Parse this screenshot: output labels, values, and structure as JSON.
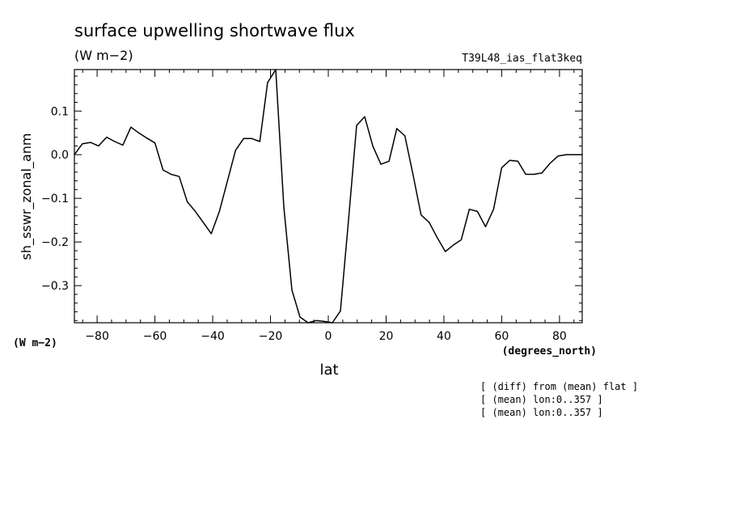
{
  "chart_data": {
    "type": "line",
    "title": "surface upwelling shortwave flux",
    "subtitle": "(W m−2)",
    "run_label": "T39L48_ias_flat3keq",
    "ylabel": "sh_sswr_zonal_anm",
    "y_units": "(W m−2)",
    "xlabel": "lat",
    "x_units": "(degrees_north)",
    "notes": [
      "[ (diff) from (mean) flat ]",
      "[ (mean) lon:0..357 ]",
      "[ (mean) lon:0..357 ]"
    ],
    "xlim": [
      -87.86,
      87.86
    ],
    "ylim": [
      -0.385,
      0.195
    ],
    "xticks": [
      -80,
      -60,
      -40,
      -20,
      0,
      20,
      40,
      60,
      80
    ],
    "yticks": [
      0.1,
      0.0,
      -0.1,
      -0.2,
      -0.3
    ],
    "ytick_labels": [
      "0.1",
      "0.0",
      "−0.1",
      "−0.2",
      "−0.3"
    ],
    "grid": false,
    "series": [
      {
        "x": [
          -87.86,
          -85.1,
          -82.3,
          -79.5,
          -76.7,
          -73.9,
          -71.1,
          -68.3,
          -65.6,
          -62.8,
          -60.0,
          -57.2,
          -54.4,
          -51.6,
          -48.8,
          -46.0,
          -43.3,
          -40.5,
          -37.7,
          -34.9,
          -32.1,
          -29.3,
          -26.5,
          -23.7,
          -21.0,
          -18.2,
          -15.4,
          -12.6,
          -9.8,
          -7.0,
          -4.2,
          -1.4,
          1.4,
          4.2,
          7.0,
          9.8,
          12.6,
          15.4,
          18.2,
          21.0,
          23.7,
          26.5,
          29.3,
          32.1,
          34.9,
          37.7,
          40.5,
          43.3,
          46.0,
          48.8,
          51.6,
          54.4,
          57.2,
          60.0,
          62.8,
          65.6,
          68.3,
          71.1,
          73.9,
          76.7,
          79.5,
          82.3,
          85.1,
          87.86
        ],
        "y": [
          0.0,
          0.025,
          0.028,
          0.02,
          0.04,
          0.03,
          0.022,
          0.063,
          0.05,
          0.038,
          0.027,
          -0.035,
          -0.045,
          -0.05,
          -0.108,
          -0.13,
          -0.155,
          -0.181,
          -0.13,
          -0.06,
          0.01,
          0.037,
          0.037,
          0.03,
          0.165,
          0.195,
          -0.12,
          -0.31,
          -0.372,
          -0.385,
          -0.38,
          -0.382,
          -0.385,
          -0.358,
          -0.15,
          0.067,
          0.087,
          0.02,
          -0.022,
          -0.015,
          0.06,
          0.043,
          -0.045,
          -0.138,
          -0.155,
          -0.19,
          -0.222,
          -0.207,
          -0.195,
          -0.125,
          -0.13,
          -0.165,
          -0.125,
          -0.03,
          -0.013,
          -0.015,
          -0.045,
          -0.045,
          -0.042,
          -0.02,
          -0.003,
          0.0,
          0.0,
          0.0
        ]
      }
    ]
  }
}
